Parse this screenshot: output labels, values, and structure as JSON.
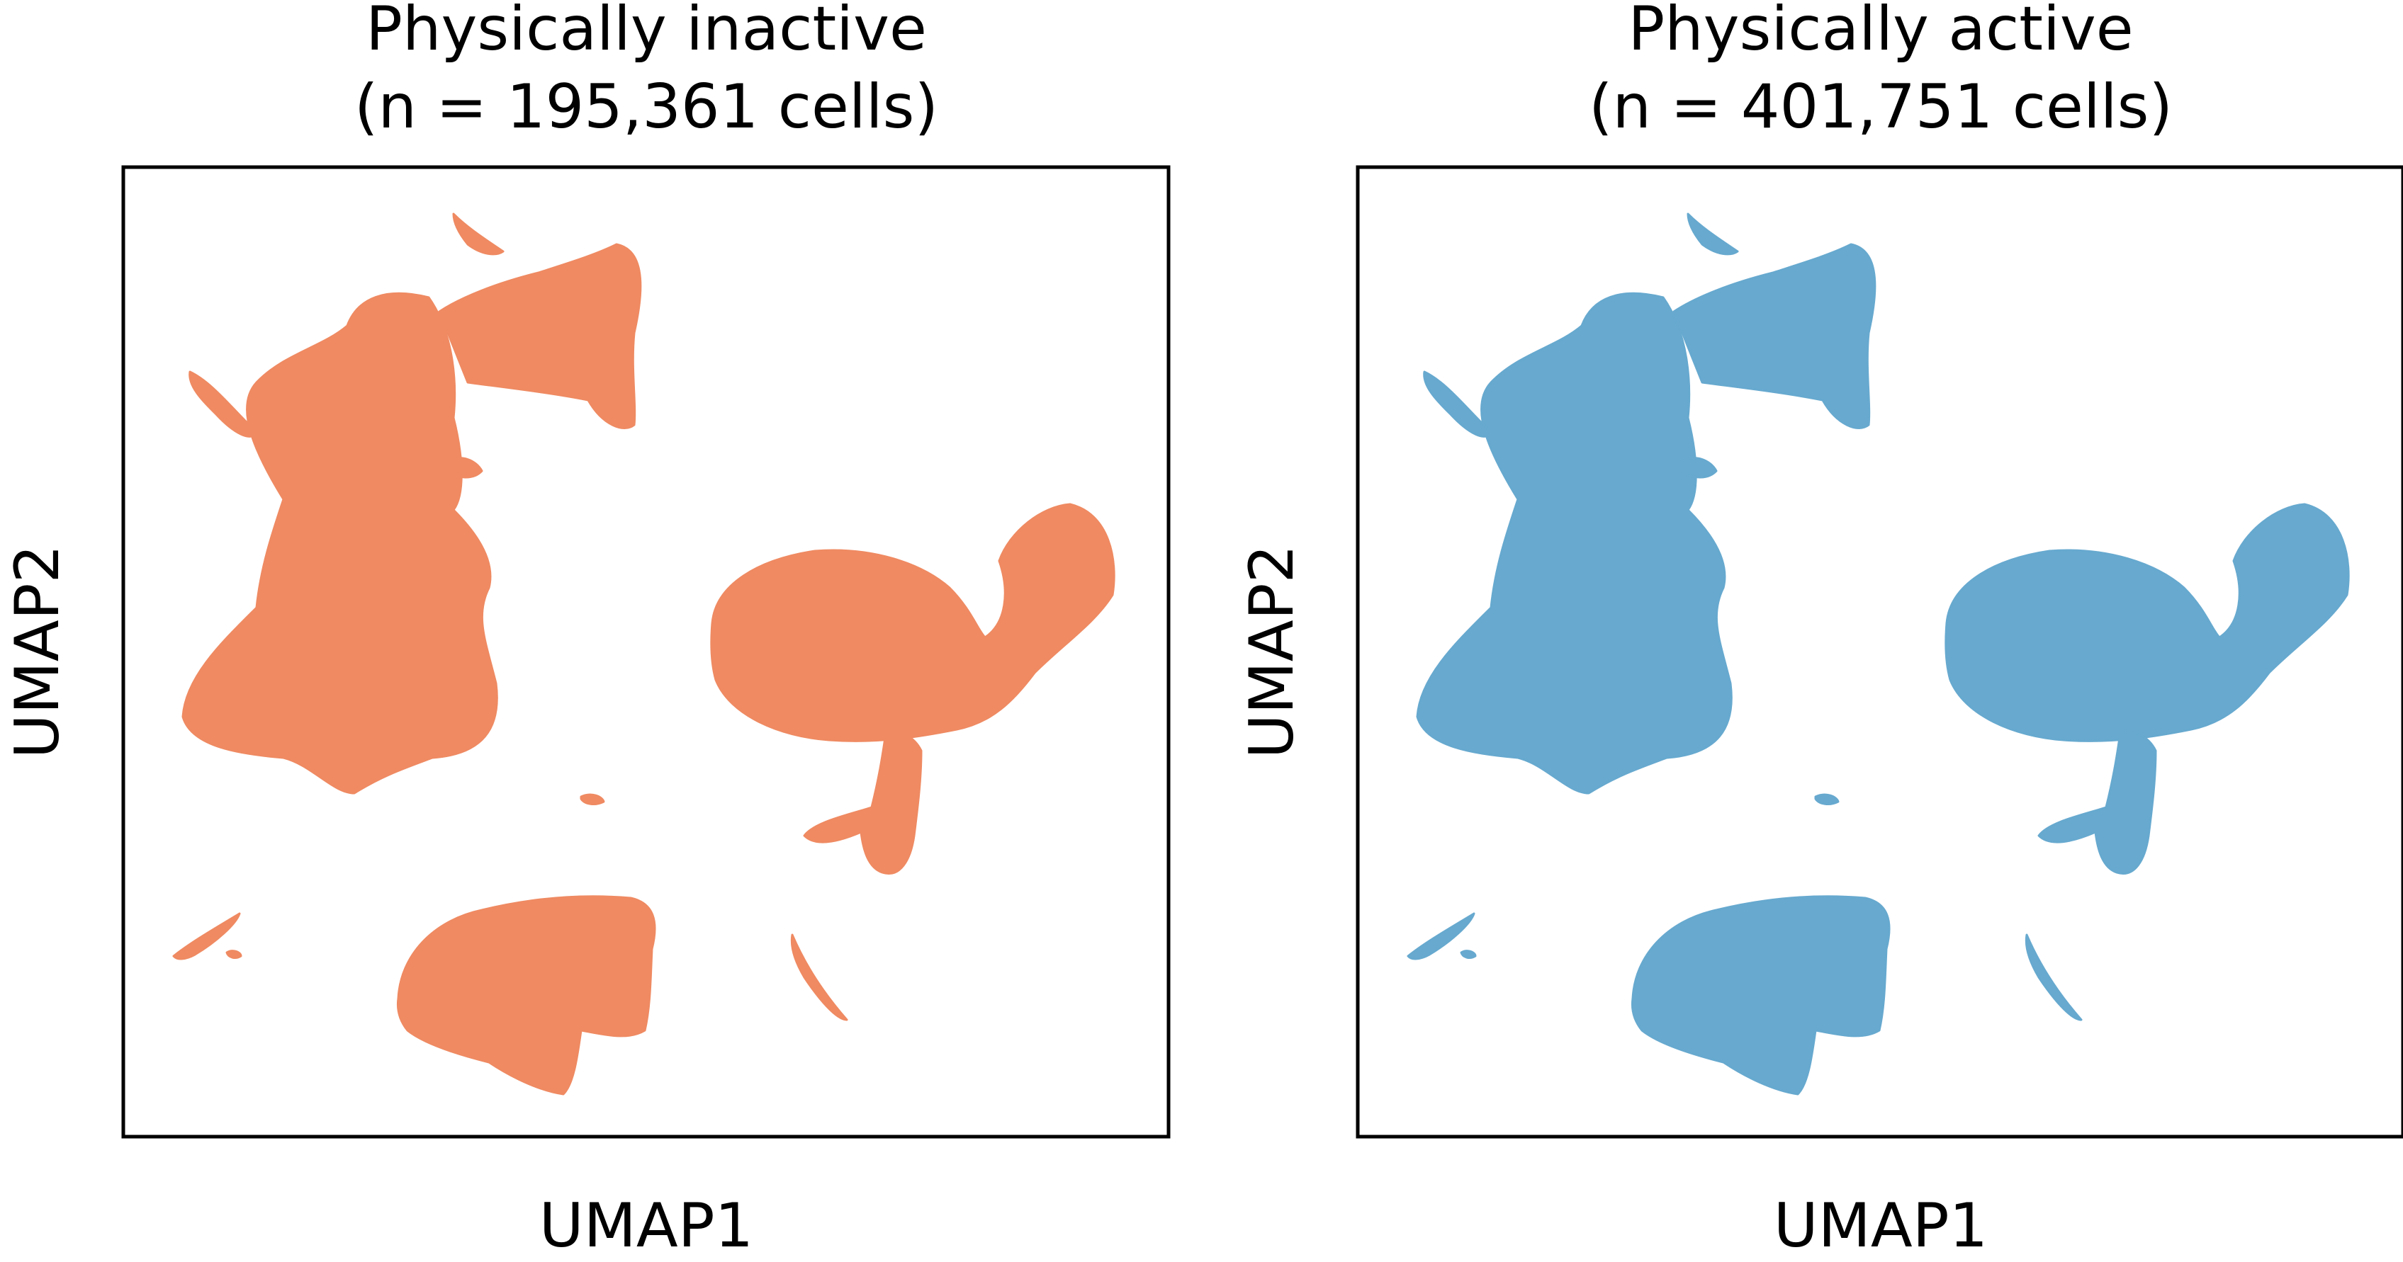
{
  "chart_data": [
    {
      "type": "scatter",
      "title_line1": "Physically inactive",
      "title_line2": "(n = 195,361 cells)",
      "xlabel": "UMAP1",
      "ylabel": "UMAP2",
      "color": "#ef8a62",
      "ticks": false,
      "grid": false
    },
    {
      "type": "scatter",
      "title_line1": "Physically active",
      "title_line2": "(n = 401,751 cells)",
      "xlabel": "UMAP1",
      "ylabel": "UMAP2",
      "color": "#67a9cf",
      "ticks": false,
      "grid": false
    }
  ]
}
